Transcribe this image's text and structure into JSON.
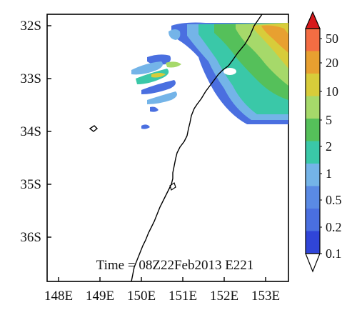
{
  "map": {
    "annotation": "Time = 08Z22Feb2013 E221",
    "lon_ticks": [
      "148E",
      "149E",
      "150E",
      "151E",
      "152E",
      "153E"
    ],
    "lat_ticks": [
      "32S",
      "33S",
      "34S",
      "35S",
      "36S"
    ],
    "lon_range": [
      147.6,
      153.5
    ],
    "lat_range": [
      -36.85,
      -31.8
    ]
  },
  "colorbar": {
    "labels": [
      "50",
      "20",
      "10",
      "5",
      "2",
      "1",
      "0.5",
      "0.2",
      "0.1"
    ],
    "colors": [
      "#d7191c",
      "#f46d43",
      "#e8a030",
      "#d8cc3a",
      "#a6d96a",
      "#55c05a",
      "#3ac8a8",
      "#74b4e8",
      "#4a6fe0",
      "#3045d8"
    ]
  }
}
